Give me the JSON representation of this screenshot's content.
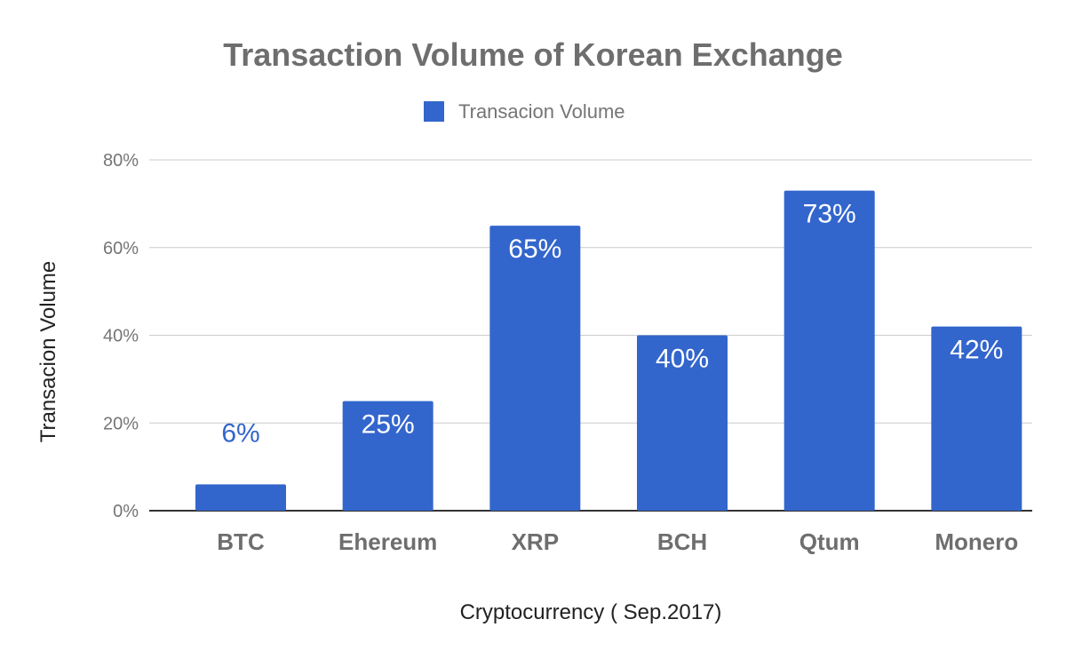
{
  "chart_data": {
    "type": "bar",
    "title": "Transaction Volume of Korean Exchange",
    "xlabel": "Cryptocurrency ( Sep.2017)",
    "ylabel": "Transacion Volume",
    "categories": [
      "BTC",
      "Ehereum",
      "XRP",
      "BCH",
      "Qtum",
      "Monero"
    ],
    "series": [
      {
        "name": "Transacion Volume",
        "values": [
          6,
          25,
          65,
          40,
          73,
          42
        ],
        "data_labels": [
          "6%",
          "25%",
          "65%",
          "40%",
          "73%",
          "42%"
        ],
        "color": "#3366cc"
      }
    ],
    "y_ticks": [
      "0%",
      "20%",
      "40%",
      "60%",
      "80%"
    ],
    "ylim": [
      0,
      80
    ],
    "grid": true,
    "legend_position": "top-center"
  },
  "colors": {
    "bar": "#3366cc",
    "gridline": "#cccccc",
    "baseline": "#333333",
    "label_inside": "#ffffff",
    "label_outside": "#3366cc"
  }
}
